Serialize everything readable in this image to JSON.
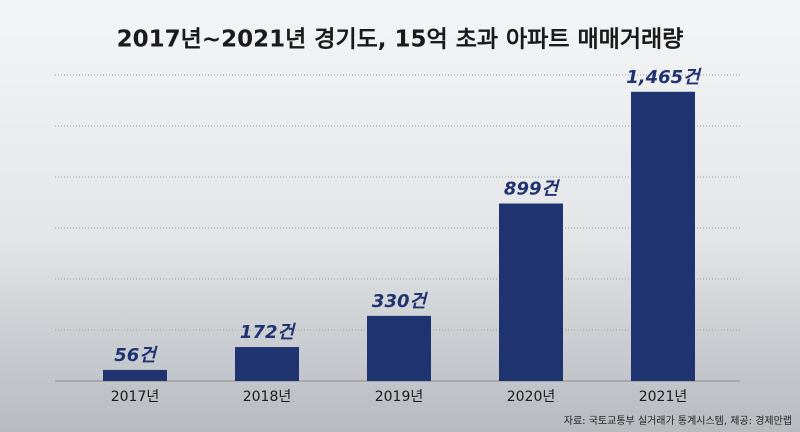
{
  "chart_data": {
    "type": "bar",
    "title": "2017년~2021년 경기도, 15억 초과 아파트 매매거래량",
    "categories": [
      "2017년",
      "2018년",
      "2019년",
      "2020년",
      "2021년"
    ],
    "values": [
      56,
      172,
      330,
      899,
      1465
    ],
    "value_labels": [
      "56건",
      "172건",
      "330건",
      "899건",
      "1,465건"
    ],
    "color": "#1f3370",
    "ylim": [
      0,
      1550
    ],
    "grid": true,
    "source": "자료: 국토교통부 실거래가 통계시스템, 제공: 경제만랩"
  }
}
